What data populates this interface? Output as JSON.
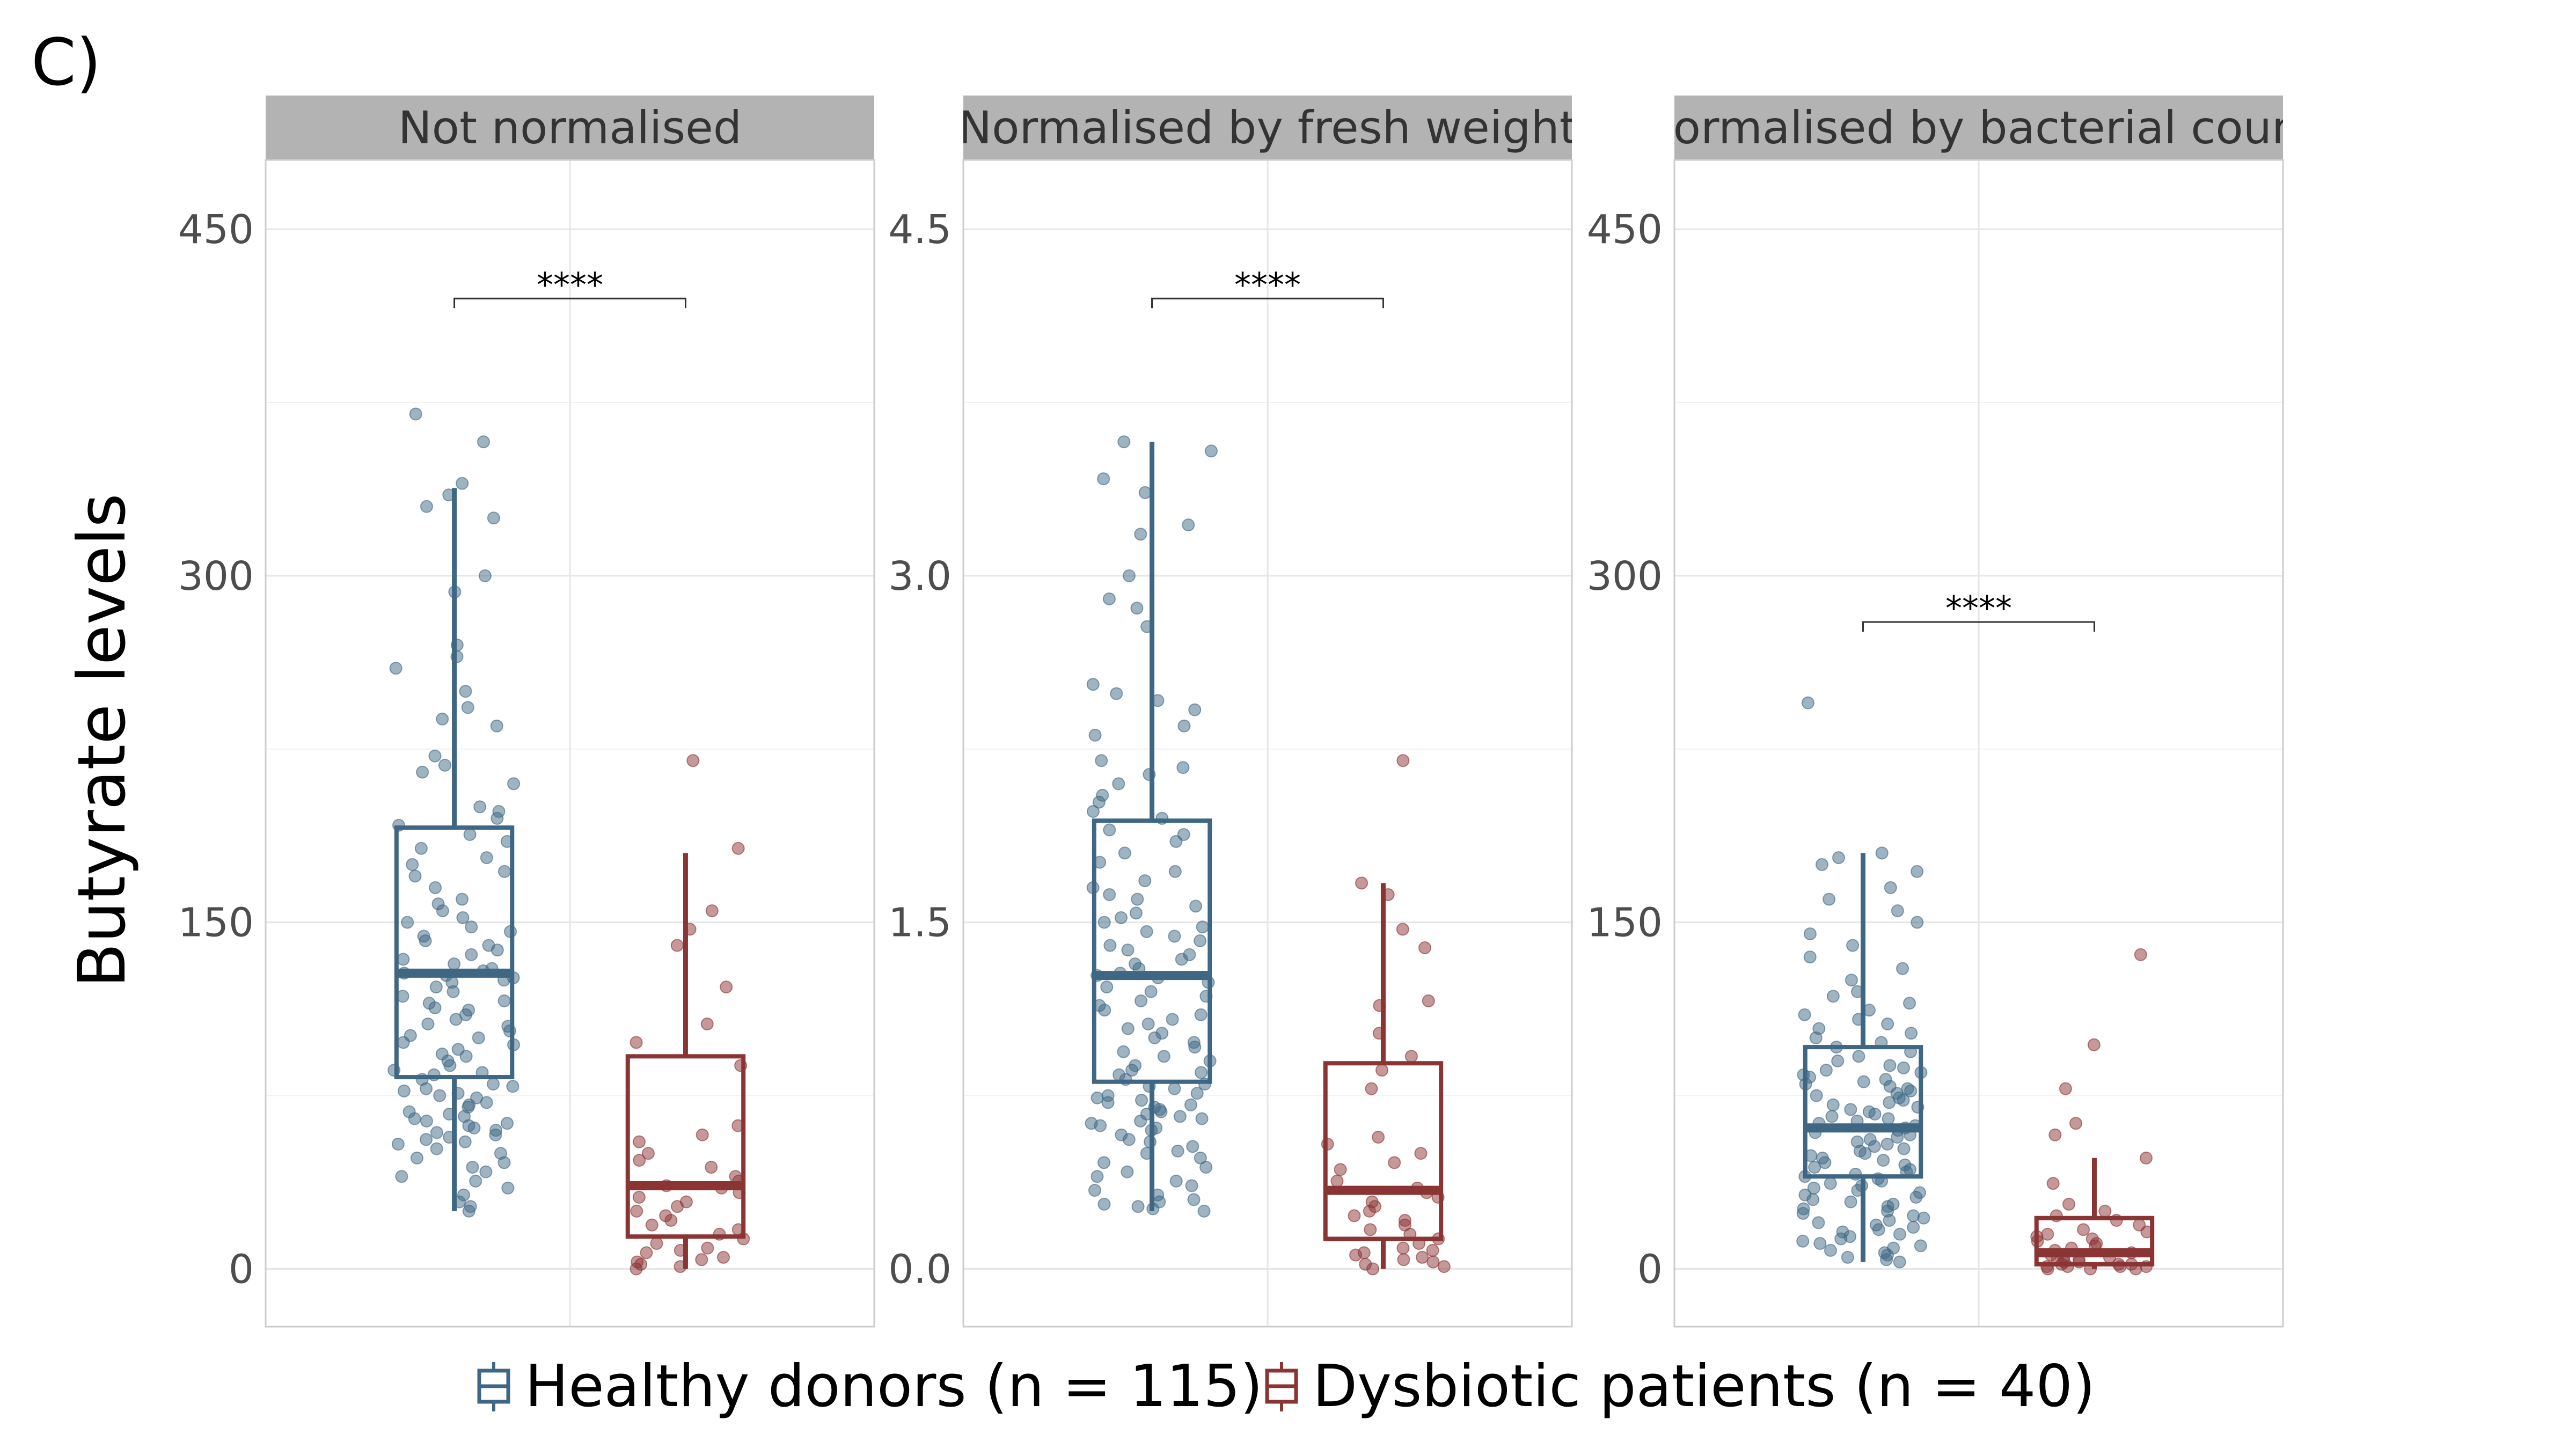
{
  "figure": {
    "panel_label": "C)",
    "ylabel": "Butyrate levels"
  },
  "colors": {
    "healthy": "#3f6784",
    "dysbiotic": "#8b3434",
    "strip_bg": "#b3b3b3"
  },
  "legend": {
    "items": [
      {
        "label": "Healthy donors (n = 115)",
        "color": "#3f6784"
      },
      {
        "label": "Dysbiotic patients (n = 40)",
        "color": "#8b3434"
      }
    ]
  },
  "chart_data": [
    {
      "type": "box",
      "title": "Not normalised",
      "ylim": [
        -25,
        480
      ],
      "yticks": [
        0,
        150,
        300,
        450
      ],
      "ytick_labels": [
        "0",
        "150",
        "300",
        "450"
      ],
      "grid": true,
      "significance": {
        "label": "****",
        "y": 420
      },
      "series": [
        {
          "name": "Healthy donors (n = 115)",
          "box": {
            "q1": 83,
            "median": 128,
            "q3": 191,
            "whisker_low": 25,
            "whisker_high": 338
          },
          "points": [
            370,
            358,
            340,
            335,
            330,
            325,
            300,
            293,
            270,
            265,
            260,
            250,
            243,
            238,
            235,
            222,
            218,
            215,
            210,
            200,
            198,
            195,
            192,
            188,
            185,
            182,
            178,
            175,
            172,
            170,
            165,
            160,
            158,
            155,
            152,
            150,
            148,
            146,
            144,
            142,
            140,
            138,
            136,
            134,
            132,
            130,
            129,
            128,
            127,
            126,
            125,
            124,
            122,
            120,
            118,
            116,
            115,
            113,
            112,
            110,
            108,
            106,
            105,
            103,
            101,
            100,
            98,
            97,
            95,
            93,
            92,
            90,
            88,
            86,
            85,
            84,
            82,
            80,
            79,
            78,
            77,
            76,
            75,
            74,
            72,
            71,
            70,
            68,
            67,
            66,
            65,
            64,
            63,
            62,
            61,
            60,
            59,
            58,
            57,
            56,
            55,
            54,
            52,
            50,
            48,
            46,
            44,
            42,
            40,
            38,
            35,
            32,
            29,
            27,
            25
          ]
        },
        {
          "name": "Dysbiotic patients (n = 40)",
          "box": {
            "q1": 14,
            "median": 36,
            "q3": 92,
            "whisker_low": 0,
            "whisker_high": 180
          },
          "points": [
            220,
            182,
            155,
            147,
            140,
            122,
            106,
            98,
            88,
            62,
            58,
            55,
            50,
            47,
            44,
            40,
            38,
            36,
            35,
            33,
            31,
            29,
            27,
            25,
            23,
            21,
            19,
            17,
            15,
            13,
            11,
            9,
            8,
            7,
            5,
            4,
            3,
            2,
            1,
            0
          ]
        }
      ]
    },
    {
      "type": "box",
      "title": "Normalised by fresh weight",
      "ylim": [
        -0.25,
        4.8
      ],
      "yticks": [
        0,
        1.5,
        3.0,
        4.5
      ],
      "ytick_labels": [
        "0.0",
        "1.5",
        "3.0",
        "4.5"
      ],
      "grid": true,
      "significance": {
        "label": "****",
        "y": 4.2
      },
      "series": [
        {
          "name": "Healthy donors (n = 115)",
          "box": {
            "q1": 0.81,
            "median": 1.27,
            "q3": 1.94,
            "whisker_low": 0.25,
            "whisker_high": 3.58
          },
          "points": [
            3.58,
            3.54,
            3.42,
            3.36,
            3.22,
            3.18,
            3.0,
            2.9,
            2.86,
            2.78,
            2.53,
            2.49,
            2.46,
            2.42,
            2.35,
            2.31,
            2.2,
            2.17,
            2.14,
            2.1,
            2.05,
            2.02,
            1.98,
            1.95,
            1.9,
            1.88,
            1.85,
            1.8,
            1.76,
            1.72,
            1.68,
            1.65,
            1.62,
            1.6,
            1.57,
            1.54,
            1.52,
            1.5,
            1.48,
            1.46,
            1.44,
            1.42,
            1.4,
            1.38,
            1.36,
            1.34,
            1.32,
            1.3,
            1.28,
            1.27,
            1.26,
            1.24,
            1.22,
            1.2,
            1.18,
            1.16,
            1.14,
            1.12,
            1.1,
            1.08,
            1.06,
            1.04,
            1.02,
            1.0,
            0.98,
            0.96,
            0.94,
            0.92,
            0.9,
            0.88,
            0.86,
            0.85,
            0.84,
            0.82,
            0.8,
            0.79,
            0.78,
            0.76,
            0.75,
            0.74,
            0.73,
            0.72,
            0.71,
            0.7,
            0.69,
            0.68,
            0.67,
            0.66,
            0.65,
            0.64,
            0.63,
            0.62,
            0.61,
            0.6,
            0.58,
            0.56,
            0.55,
            0.53,
            0.51,
            0.5,
            0.48,
            0.46,
            0.44,
            0.42,
            0.4,
            0.38,
            0.36,
            0.34,
            0.32,
            0.3,
            0.29,
            0.28,
            0.27,
            0.26,
            0.25
          ]
        },
        {
          "name": "Dysbiotic patients (n = 40)",
          "box": {
            "q1": 0.13,
            "median": 0.34,
            "q3": 0.89,
            "whisker_low": 0.0,
            "whisker_high": 1.67
          },
          "points": [
            2.2,
            1.67,
            1.62,
            1.47,
            1.39,
            1.16,
            1.14,
            1.02,
            0.92,
            0.86,
            0.78,
            0.57,
            0.54,
            0.5,
            0.46,
            0.43,
            0.38,
            0.35,
            0.33,
            0.31,
            0.29,
            0.27,
            0.25,
            0.23,
            0.21,
            0.19,
            0.17,
            0.15,
            0.13,
            0.11,
            0.09,
            0.08,
            0.07,
            0.06,
            0.05,
            0.04,
            0.03,
            0.02,
            0.01,
            0.0
          ]
        }
      ]
    },
    {
      "type": "box",
      "title": "Normalised by bacterial count",
      "ylim": [
        -25,
        480
      ],
      "yticks": [
        0,
        150,
        300,
        450
      ],
      "ytick_labels": [
        "0",
        "150",
        "300",
        "450"
      ],
      "grid": true,
      "significance": {
        "label": "****",
        "y": 280
      },
      "series": [
        {
          "name": "Healthy donors (n = 115)",
          "box": {
            "q1": 40,
            "median": 61,
            "q3": 96,
            "whisker_low": 3,
            "whisker_high": 180
          },
          "points": [
            245,
            180,
            178,
            175,
            172,
            165,
            160,
            155,
            150,
            145,
            140,
            135,
            130,
            125,
            120,
            118,
            115,
            112,
            110,
            108,
            106,
            104,
            102,
            100,
            98,
            96,
            94,
            92,
            90,
            88,
            87,
            86,
            85,
            84,
            83,
            82,
            81,
            80,
            79,
            78,
            77,
            76,
            75,
            74,
            73,
            72,
            71,
            70,
            69,
            68,
            67,
            66,
            65,
            64,
            63,
            62,
            61,
            60,
            59,
            58,
            57,
            56,
            55,
            54,
            53,
            52,
            51,
            50,
            49,
            48,
            47,
            46,
            45,
            44,
            43,
            42,
            41,
            40,
            39,
            38,
            37,
            36,
            35,
            34,
            33,
            32,
            31,
            30,
            29,
            28,
            27,
            26,
            25,
            24,
            23,
            22,
            21,
            20,
            19,
            18,
            17,
            16,
            15,
            14,
            13,
            12,
            11,
            10,
            9,
            8,
            7,
            6,
            5,
            4,
            3
          ]
        },
        {
          "name": "Dysbiotic patients (n = 40)",
          "box": {
            "q1": 2,
            "median": 7,
            "q3": 22,
            "whisker_low": 0,
            "whisker_high": 48
          },
          "points": [
            136,
            97,
            78,
            63,
            58,
            48,
            37,
            28,
            25,
            23,
            21,
            19,
            17,
            16,
            15,
            14,
            13,
            12,
            11,
            10,
            9,
            8,
            7,
            6,
            5,
            5,
            4,
            4,
            3,
            3,
            2,
            2,
            2,
            1,
            1,
            1,
            1,
            0,
            0,
            0
          ]
        }
      ]
    }
  ]
}
